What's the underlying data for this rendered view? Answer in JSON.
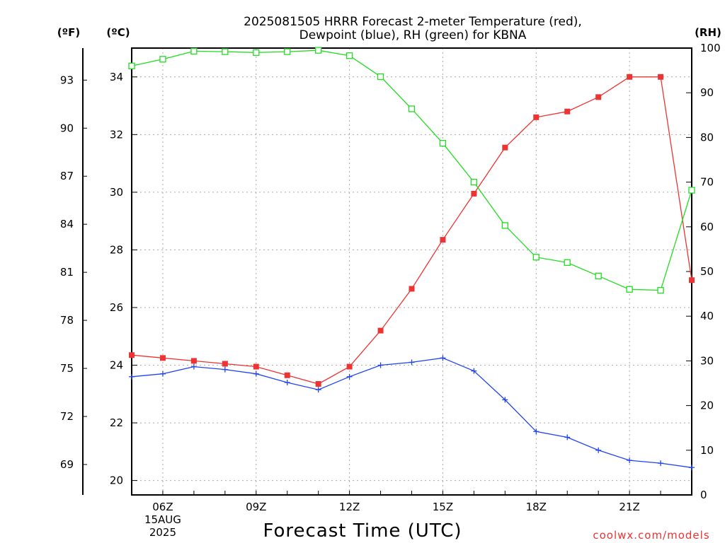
{
  "chart_data": {
    "type": "line",
    "title": [
      "2025081505 HRRR Forecast 2-meter Temperature (red),",
      "Dewpoint (blue), RH (green) for KBNA"
    ],
    "xlabel": "Forecast Time (UTC)",
    "credit": "coolwx.com/models",
    "left_axis": {
      "unit": "(ºC)",
      "range": [
        19.5,
        35.0
      ],
      "ticks": [
        20,
        22,
        24,
        26,
        28,
        30,
        32,
        34
      ]
    },
    "outer_axis": {
      "unit": "(ºF)",
      "range": [
        67.1,
        95.0
      ],
      "ticks": [
        69,
        72,
        75,
        78,
        81,
        84,
        87,
        90,
        93
      ]
    },
    "right_axis": {
      "unit": "(RH)",
      "range": [
        0,
        100
      ],
      "ticks": [
        0,
        10,
        20,
        30,
        40,
        50,
        60,
        70,
        80,
        90,
        100
      ]
    },
    "x": [
      "05Z",
      "06Z",
      "07Z",
      "08Z",
      "09Z",
      "10Z",
      "11Z",
      "12Z",
      "13Z",
      "14Z",
      "15Z",
      "16Z",
      "17Z",
      "18Z",
      "19Z",
      "20Z",
      "21Z",
      "22Z",
      "23Z"
    ],
    "x_tick_labels": [
      {
        "x": "06Z",
        "lines": [
          "06Z",
          "15AUG",
          "2025"
        ]
      },
      {
        "x": "09Z",
        "lines": [
          "09Z"
        ]
      },
      {
        "x": "12Z",
        "lines": [
          "12Z"
        ]
      },
      {
        "x": "15Z",
        "lines": [
          "15Z"
        ]
      },
      {
        "x": "18Z",
        "lines": [
          "18Z"
        ]
      },
      {
        "x": "21Z",
        "lines": [
          "21Z"
        ]
      }
    ],
    "grid": true,
    "series": [
      {
        "name": "Temperature",
        "axis": "celsius",
        "color": "#ee3333",
        "marker": "filled-square",
        "values": [
          24.35,
          24.25,
          24.15,
          24.05,
          23.95,
          23.65,
          23.35,
          23.95,
          25.2,
          26.65,
          28.35,
          29.95,
          31.55,
          32.6,
          32.8,
          33.3,
          34.0,
          34.0,
          26.95
        ]
      },
      {
        "name": "Dewpoint",
        "axis": "celsius",
        "color": "#2244ee",
        "marker": "plus",
        "values": [
          23.6,
          23.7,
          23.95,
          23.85,
          23.7,
          23.4,
          23.15,
          23.6,
          24.0,
          24.1,
          24.25,
          23.8,
          22.8,
          21.7,
          21.5,
          21.05,
          20.7,
          20.6,
          20.45
        ]
      },
      {
        "name": "RH",
        "axis": "rh",
        "color": "#22dd22",
        "marker": "open-square",
        "values": [
          96,
          97.5,
          99.3,
          99.2,
          99.0,
          99.2,
          99.5,
          98.3,
          93.6,
          86.4,
          78.7,
          70.0,
          60.3,
          53.2,
          52.0,
          49.0,
          46.0,
          45.8,
          68.2
        ]
      }
    ]
  }
}
